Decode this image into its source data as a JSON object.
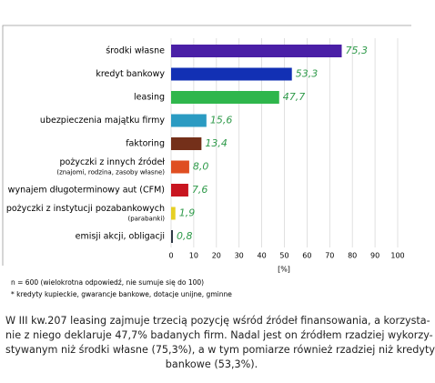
{
  "chart_data": {
    "type": "barh",
    "categories": [
      "środki własne",
      "kredyt bankowy",
      "leasing",
      "ubezpieczenia majątku firmy",
      "faktoring",
      "pożyczki z innych źródeł",
      "wynajem długoterminowy aut (CFM)",
      "pożyczki z instytucji pozabankowych",
      "emisji akcji, obligacji"
    ],
    "category_notes": [
      null,
      null,
      null,
      null,
      null,
      "(znajomi, rodzina, zasoby własne)",
      null,
      "(parabanki)",
      null
    ],
    "values": [
      75.3,
      53.3,
      47.7,
      15.6,
      13.4,
      8.0,
      7.6,
      1.9,
      0.8
    ],
    "value_labels": [
      "75,3",
      "53,3",
      "47,7",
      "15,6",
      "13,4",
      "8,0",
      "7,6",
      "1,9",
      "0,8"
    ],
    "colors": [
      "#4a1fa6",
      "#1230b4",
      "#2fb64c",
      "#2b9bc2",
      "#74301a",
      "#df4e22",
      "#c8151f",
      "#e6cf24",
      "#2f3845"
    ],
    "value_label_color": "#2f9a4a",
    "xlim": [
      0,
      100
    ],
    "xticks": [
      0,
      10,
      20,
      30,
      40,
      50,
      60,
      70,
      80,
      90,
      100
    ],
    "xlabel": "[%]",
    "grid": true,
    "notes": [
      "n = 600 (wielokrotna odpowiedź, nie sumuje się do 100)",
      "* kredyty kupieckie, gwarancje bankowe, dotacje unijne, gminne"
    ]
  },
  "paragraph": {
    "lines": [
      "W III kw.207 leasing zajmuje trzecią pozycję wśród źródeł finansowania, a korzysta-",
      "nie z niego deklaruje 47,7% badanych firm. Nadal jest on źródłem rzadziej wykorzy-",
      "stywanym niż środki własne (75,3%), a w tym pomiarze również rzadziej niż kredyty",
      "bankowe (53,3%)."
    ]
  }
}
